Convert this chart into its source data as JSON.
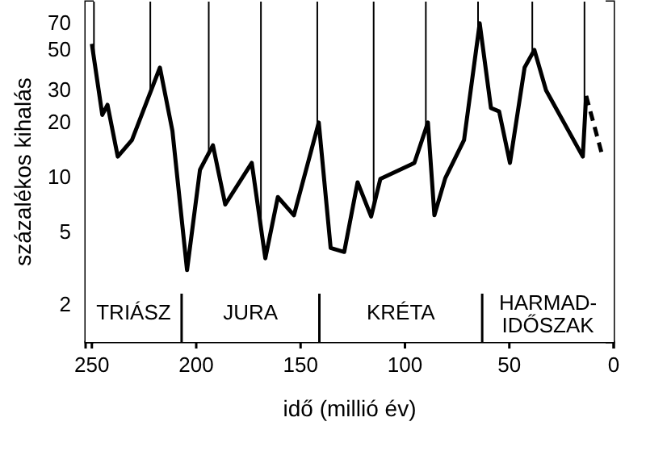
{
  "chart_data": {
    "type": "line",
    "xlabel": "idő (millió év)",
    "ylabel": "százalékos kihalás",
    "log": "y",
    "xlim": [
      253,
      0
    ],
    "xticks": [
      250,
      200,
      150,
      100,
      50,
      0
    ],
    "ylim": [
      1.25,
      92
    ],
    "yticks": [
      2,
      5,
      10,
      20,
      30,
      50,
      70
    ],
    "line_style": "solid",
    "marker": "none",
    "grid": false,
    "series": [
      {
        "color": "#000000",
        "x": [
          250,
          245,
          242.5,
          237.6,
          230.8,
          217.4,
          211.4,
          204.4,
          198.2,
          192,
          186.1,
          173.4,
          166.9,
          160.9,
          153.2,
          141.3,
          135.6,
          129.1,
          122.7,
          116.2,
          111.8,
          95.5,
          89,
          85.9,
          80.7,
          71.7,
          64.2,
          58.8,
          54.9,
          49.7,
          42.7,
          38,
          32.4,
          14.8,
          13.2
        ],
        "values": [
          54,
          22,
          25,
          13,
          16,
          40,
          18,
          3.1,
          11,
          15,
          7.1,
          12,
          3.6,
          7.8,
          6.2,
          20,
          4.1,
          3.9,
          9.4,
          6.1,
          9.8,
          12,
          20,
          6.2,
          9.9,
          16,
          70,
          24,
          23,
          12,
          40,
          50,
          30,
          13,
          28
        ]
      },
      {
        "color": "#000000",
        "line_style": "dashed",
        "x": [
          13.2,
          5.7
        ],
        "values": [
          28,
          13.5
        ]
      }
    ],
    "ref_lines": [
      {
        "axis": "x",
        "value": 249
      },
      {
        "axis": "x",
        "value": 222
      },
      {
        "axis": "x",
        "value": 194
      },
      {
        "axis": "x",
        "value": 169
      },
      {
        "axis": "x",
        "value": 142
      },
      {
        "axis": "x",
        "value": 115
      },
      {
        "axis": "x",
        "value": 90
      },
      {
        "axis": "x",
        "value": 65
      },
      {
        "axis": "x",
        "value": 39
      },
      {
        "axis": "x",
        "value": 14
      }
    ],
    "bands": [
      {
        "axis": "x",
        "from": 253,
        "to": 207,
        "label": "TRIÁSZ",
        "color": "#ffffff"
      },
      {
        "axis": "x",
        "from": 207,
        "to": 141,
        "label": "JURA",
        "color": "#ffffff"
      },
      {
        "axis": "x",
        "from": 141,
        "to": 63,
        "label": "KRÉTA",
        "color": "#ffffff"
      },
      {
        "axis": "x",
        "from": 63,
        "to": 0,
        "label": "HARMAD-IDŐSZAK",
        "color": "#ffffff"
      }
    ]
  }
}
